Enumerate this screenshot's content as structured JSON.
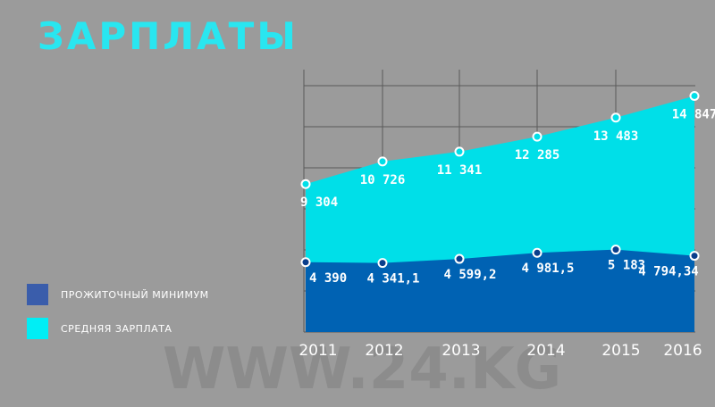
{
  "title": "ЗАРПЛАТЫ",
  "watermark": "WWW.24.KG",
  "colors": {
    "background": "#9b9b9b",
    "average_salary": "#00dfe8",
    "subsistence_min": "#0062b3",
    "grid": "#5a5a5a",
    "title": "#29e6f0"
  },
  "legend": [
    {
      "label": "ПРОЖИТОЧНЫЙ МИНИМУМ",
      "color": "#3a5dab"
    },
    {
      "label": "СРЕДНЯЯ ЗАРПЛАТА",
      "color": "#00eef5"
    }
  ],
  "chart_data": {
    "type": "area",
    "title": "ЗАРПЛАТЫ",
    "x": [
      "2011",
      "2012",
      "2013",
      "2014",
      "2015",
      "2016"
    ],
    "ylim": [
      0,
      16500
    ],
    "grid": true,
    "legend_position": "left",
    "series": [
      {
        "name": "СРЕДНЯЯ ЗАРПЛАТА",
        "values": [
          9304,
          10726,
          11341,
          12285,
          13483,
          14847
        ],
        "labels": [
          "9 304",
          "10 726",
          "11 341",
          "12 285",
          "13 483",
          "14 847"
        ]
      },
      {
        "name": "ПРОЖИТОЧНЫЙ МИНИМУМ",
        "values": [
          4390,
          4341.1,
          4599.2,
          4981.5,
          5183,
          4794.34
        ],
        "labels": [
          "4 390",
          "4 341,1",
          "4 599,2",
          "4 981,5",
          "5 183",
          "4 794,34"
        ]
      }
    ]
  }
}
